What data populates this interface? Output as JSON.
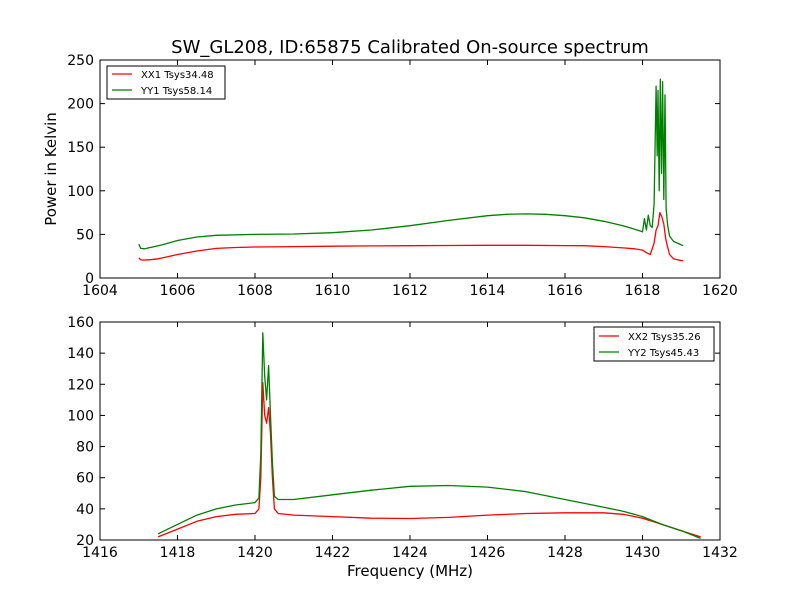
{
  "chart_data": [
    {
      "type": "line",
      "title": "SW_GL208, ID:65875 Calibrated On-source spectrum",
      "xlabel": "",
      "ylabel": "Power in Kelvin",
      "xlim": [
        1604,
        1620
      ],
      "ylim": [
        0,
        250
      ],
      "xticks": [
        1604,
        1606,
        1608,
        1610,
        1612,
        1614,
        1616,
        1618,
        1620
      ],
      "yticks": [
        0,
        50,
        100,
        150,
        200,
        250
      ],
      "grid": false,
      "legend_placement": "top-left",
      "series": [
        {
          "name": "XX1 Tsys34.48",
          "color": "#ff0000",
          "x": [
            1605.0,
            1605.05,
            1605.1,
            1605.3,
            1605.5,
            1605.7,
            1606.0,
            1606.5,
            1607.0,
            1607.5,
            1608.0,
            1609.0,
            1610.0,
            1611.0,
            1612.0,
            1613.0,
            1614.0,
            1615.0,
            1616.0,
            1616.5,
            1617.0,
            1617.5,
            1617.8,
            1618.0,
            1618.1,
            1618.2,
            1618.3,
            1618.35,
            1618.4,
            1618.45,
            1618.5,
            1618.55,
            1618.6,
            1618.65,
            1618.7,
            1618.8,
            1618.9,
            1619.0,
            1619.05
          ],
          "values": [
            23,
            21,
            20.5,
            21,
            22,
            24,
            27,
            31,
            34,
            35,
            35.5,
            36,
            36.5,
            36.8,
            37,
            37.3,
            37.5,
            37.5,
            37.2,
            37,
            36,
            34.5,
            33.5,
            32,
            29,
            27,
            40,
            55,
            60,
            75,
            70,
            62,
            45,
            35,
            27,
            22,
            21,
            20,
            20
          ]
        },
        {
          "name": "YY1 Tsys58.14",
          "color": "#008000",
          "x": [
            1605.0,
            1605.05,
            1605.15,
            1605.3,
            1605.6,
            1606.0,
            1606.5,
            1607.0,
            1608.0,
            1609.0,
            1610.0,
            1611.0,
            1612.0,
            1613.0,
            1614.0,
            1614.5,
            1615.0,
            1615.5,
            1616.0,
            1616.5,
            1617.0,
            1617.5,
            1617.8,
            1618.0,
            1618.05,
            1618.1,
            1618.15,
            1618.2,
            1618.25,
            1618.3,
            1618.35,
            1618.38,
            1618.4,
            1618.43,
            1618.46,
            1618.49,
            1618.52,
            1618.55,
            1618.58,
            1618.61,
            1618.65,
            1618.7,
            1618.8,
            1618.9,
            1619.0,
            1619.05
          ],
          "values": [
            39,
            34,
            33.5,
            35,
            38,
            43,
            47,
            49,
            50,
            50.5,
            52,
            55,
            60,
            66,
            71.5,
            73,
            73.5,
            73,
            71.5,
            69,
            65,
            60,
            56,
            53,
            68,
            55,
            72,
            60,
            58,
            85,
            220,
            140,
            215,
            100,
            228,
            120,
            225,
            90,
            210,
            80,
            60,
            48,
            42,
            40,
            38,
            37
          ]
        }
      ]
    },
    {
      "type": "line",
      "title": "",
      "xlabel": "Frequency (MHz)",
      "ylabel": "",
      "xlim": [
        1416,
        1432
      ],
      "ylim": [
        20,
        160
      ],
      "xticks": [
        1416,
        1418,
        1420,
        1422,
        1424,
        1426,
        1428,
        1430,
        1432
      ],
      "yticks": [
        20,
        40,
        60,
        80,
        100,
        120,
        140,
        160
      ],
      "grid": false,
      "legend_placement": "top-right",
      "series": [
        {
          "name": "XX2 Tsys35.26",
          "color": "#ff0000",
          "x": [
            1417.5,
            1418.0,
            1418.5,
            1419.0,
            1419.5,
            1420.0,
            1420.1,
            1420.15,
            1420.2,
            1420.25,
            1420.3,
            1420.35,
            1420.4,
            1420.45,
            1420.5,
            1420.6,
            1421.0,
            1422.0,
            1423.0,
            1424.0,
            1425.0,
            1426.0,
            1427.0,
            1428.0,
            1429.0,
            1429.5,
            1430.0,
            1430.5,
            1431.0,
            1431.5
          ],
          "values": [
            22,
            27,
            32,
            35,
            36.5,
            37,
            40,
            60,
            121,
            100,
            95,
            105,
            88,
            60,
            40,
            37,
            36,
            35,
            34,
            33.8,
            34.5,
            36,
            37,
            37.5,
            37.5,
            36.5,
            34,
            30,
            26,
            22
          ]
        },
        {
          "name": "YY2 Tsys45.43",
          "color": "#008000",
          "x": [
            1417.5,
            1418.0,
            1418.5,
            1419.0,
            1419.5,
            1420.0,
            1420.1,
            1420.15,
            1420.2,
            1420.25,
            1420.3,
            1420.35,
            1420.4,
            1420.45,
            1420.5,
            1420.6,
            1421.0,
            1422.0,
            1423.0,
            1424.0,
            1425.0,
            1426.0,
            1427.0,
            1428.0,
            1429.0,
            1429.5,
            1430.0,
            1430.5,
            1431.0,
            1431.5
          ],
          "values": [
            24,
            30,
            36,
            40,
            42.5,
            44,
            47,
            75,
            153,
            125,
            110,
            132,
            100,
            70,
            48,
            46,
            46,
            49,
            52,
            54.5,
            55,
            54,
            51,
            46,
            41,
            38.5,
            35,
            30,
            26,
            21
          ]
        }
      ]
    }
  ]
}
